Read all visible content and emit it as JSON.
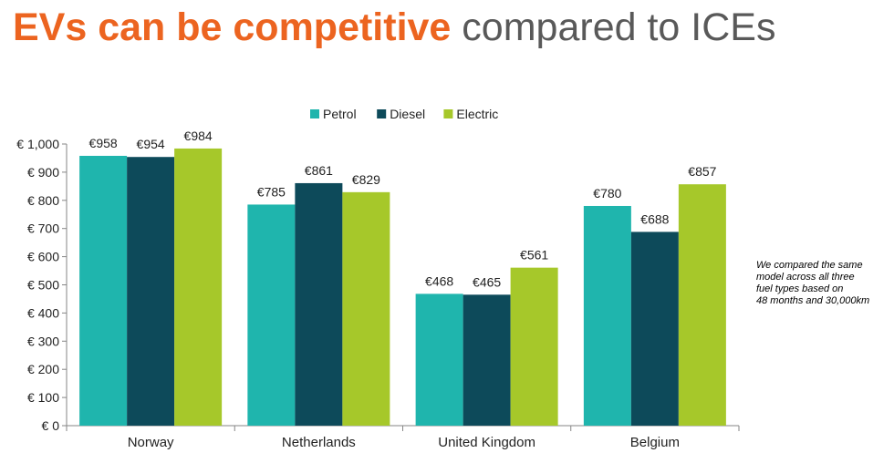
{
  "title": {
    "highlight": "EVs can be competitive",
    "rest": " compared to ICEs"
  },
  "note": "We compared the same\nmodel across all three\nfuel types based on\n48 months and 30,000km",
  "chart_data": {
    "type": "bar",
    "categories": [
      "Norway",
      "Netherlands",
      "United Kingdom",
      "Belgium"
    ],
    "series": [
      {
        "name": "Petrol",
        "color": "#1fb5ad",
        "values": [
          958,
          785,
          468,
          780
        ]
      },
      {
        "name": "Diesel",
        "color": "#0d4a5a",
        "values": [
          954,
          861,
          465,
          688
        ]
      },
      {
        "name": "Electric",
        "color": "#a6c82a",
        "values": [
          984,
          829,
          561,
          857
        ]
      }
    ],
    "data_labels": [
      [
        "€958",
        "€785",
        "€468",
        "€780"
      ],
      [
        "€954",
        "€861",
        "€465",
        "€688"
      ],
      [
        "€984",
        "€829",
        "€561",
        "€857"
      ]
    ],
    "ylim": [
      0,
      1000
    ],
    "yticks": [
      0,
      100,
      200,
      300,
      400,
      500,
      600,
      700,
      800,
      900,
      1000
    ],
    "ytick_labels": [
      "€ 0",
      "€ 100",
      "€ 200",
      "€ 300",
      "€ 400",
      "€ 500",
      "€ 600",
      "€ 700",
      "€ 800",
      "€ 900",
      "€ 1,000"
    ],
    "legend_position": "top-center",
    "grid": false
  }
}
